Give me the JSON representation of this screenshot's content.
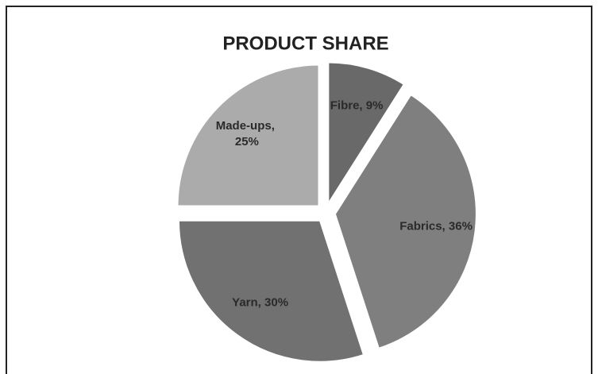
{
  "chart_data": {
    "type": "pie",
    "title": "PRODUCT SHARE",
    "categories": [
      "Fibre",
      "Fabrics",
      "Yarn",
      "Made-ups"
    ],
    "values": [
      9,
      36,
      30,
      25
    ],
    "value_labels": [
      "Fibre, 9%",
      "Fabrics, 36%",
      "Yarn, 30%",
      "Made-ups, 25%"
    ],
    "colors": [
      "#696969",
      "#7f7f7f",
      "#717171",
      "#ababab"
    ]
  }
}
